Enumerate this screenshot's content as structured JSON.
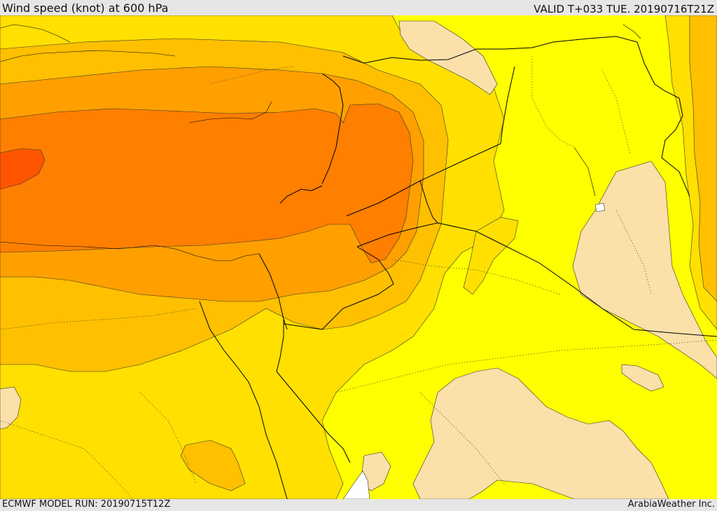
{
  "header": {
    "title": "Wind speed (knot) at 600 hPa",
    "valid": "VALID T+033 TUE. 20190716T21Z"
  },
  "footer": {
    "model_run": "ECMWF MODEL RUN: 20190715T12Z",
    "credit": "ArabiaWeather Inc."
  },
  "map": {
    "colors": {
      "lt_10": "#fce0aa",
      "10_15": "#ffff00",
      "15_20": "#ffe000",
      "20_25": "#ffc000",
      "25_30": "#ffa000",
      "30_35": "#ff7f00",
      "35_40": "#ff5500",
      "water": "#ffffff",
      "border": "#000000"
    }
  }
}
